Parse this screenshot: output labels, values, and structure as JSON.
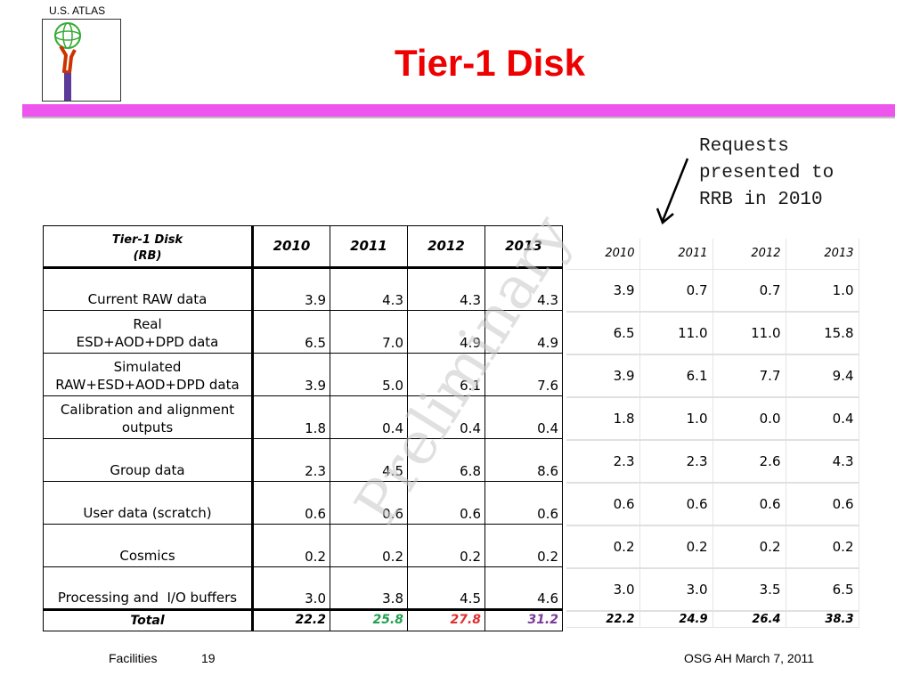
{
  "header": {
    "logo_caption": "U.S. ATLAS",
    "title": "Tier-1 Disk",
    "title_color": "#ee0000",
    "rule_color": "#ee55ee"
  },
  "annotation": {
    "lines": [
      "Requests",
      "presented to",
      "RRB in 2010"
    ]
  },
  "watermark": "Preliminary",
  "rb_table": {
    "header_name_line1": "Tier-1 Disk",
    "header_name_line2": "(RB)",
    "years": [
      "2010",
      "2011",
      "2012",
      "2013"
    ],
    "rows": [
      {
        "lines": [
          "Current RAW data"
        ],
        "values": [
          "3.9",
          "4.3",
          "4.3",
          "4.3"
        ]
      },
      {
        "lines": [
          "Real",
          "ESD+AOD+DPD data"
        ],
        "values": [
          "6.5",
          "7.0",
          "4.9",
          "4.9"
        ]
      },
      {
        "lines": [
          "Simulated",
          "RAW+ESD+AOD+DPD data"
        ],
        "values": [
          "3.9",
          "5.0",
          "6.1",
          "7.6"
        ]
      },
      {
        "lines": [
          "Calibration and alignment",
          "outputs"
        ],
        "values": [
          "1.8",
          "0.4",
          "0.4",
          "0.4"
        ]
      },
      {
        "lines": [
          "Group data"
        ],
        "values": [
          "2.3",
          "4.5",
          "6.8",
          "8.6"
        ]
      },
      {
        "lines": [
          "User data (scratch)"
        ],
        "values": [
          "0.6",
          "0.6",
          "0.6",
          "0.6"
        ]
      },
      {
        "lines": [
          "Cosmics"
        ],
        "values": [
          "0.2",
          "0.2",
          "0.2",
          "0.2"
        ]
      },
      {
        "lines": [
          "Processing and  I/O buffers"
        ],
        "values": [
          "3.0",
          "3.8",
          "4.5",
          "4.6"
        ]
      }
    ],
    "total_label": "Total",
    "totals": [
      "22.2",
      "25.8",
      "27.8",
      "31.2"
    ],
    "total_colors": [
      "#000000",
      "#22a050",
      "#e03030",
      "#7a3a9a"
    ]
  },
  "request_table": {
    "years": [
      "2010",
      "2011",
      "2012",
      "2013"
    ],
    "rows": [
      [
        "3.9",
        "0.7",
        "0.7",
        "1.0"
      ],
      [
        "6.5",
        "11.0",
        "11.0",
        "15.8"
      ],
      [
        "3.9",
        "6.1",
        "7.7",
        "9.4"
      ],
      [
        "1.8",
        "1.0",
        "0.0",
        "0.4"
      ],
      [
        "2.3",
        "2.3",
        "2.6",
        "4.3"
      ],
      [
        "0.6",
        "0.6",
        "0.6",
        "0.6"
      ],
      [
        "0.2",
        "0.2",
        "0.2",
        "0.2"
      ],
      [
        "3.0",
        "3.0",
        "3.5",
        "6.5"
      ]
    ],
    "totals": [
      "22.2",
      "24.9",
      "26.4",
      "38.3"
    ]
  },
  "footer": {
    "left": "Facilities",
    "page": "19",
    "right": "OSG AH March 7, 2011"
  }
}
